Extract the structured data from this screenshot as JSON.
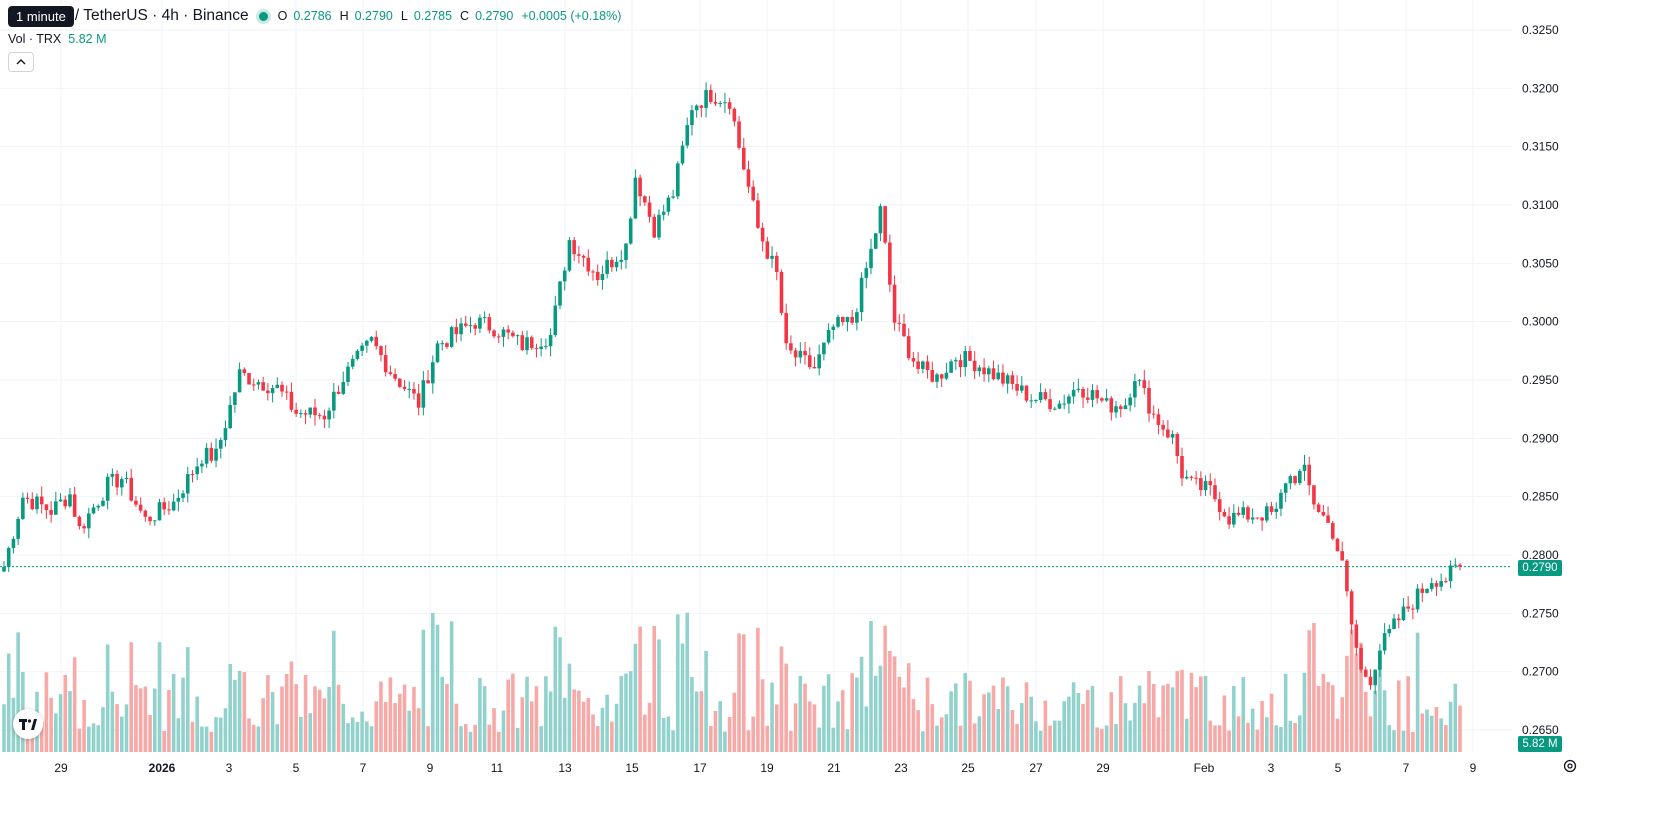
{
  "legend": {
    "tooltip": "1 minute",
    "symbol": "/ TetherUS · 4h · Binance",
    "open_label": "O",
    "open": "0.2786",
    "high_label": "H",
    "high": "0.2790",
    "low_label": "L",
    "low": "0.2785",
    "close_label": "C",
    "close": "0.2790",
    "change": "+0.0005 (+0.18%)"
  },
  "volume_legend": {
    "label": "Vol · TRX",
    "value": "5.82 M"
  },
  "collapse_icon": "chevron-up-icon",
  "current_price_tag": "0.2790",
  "volume_tag": "5.82 M",
  "colors": {
    "up": "#089981",
    "down": "#F23645",
    "up_vol": "#92D2CC",
    "down_vol": "#F7A9A7",
    "grid": "#F0F3FA",
    "price_line": "#089981"
  },
  "chart_data": {
    "type": "candlestick",
    "y_axis": {
      "ticks": [
        "0.3250",
        "0.3200",
        "0.3150",
        "0.3100",
        "0.3050",
        "0.3000",
        "0.2950",
        "0.2900",
        "0.2850",
        "0.2800",
        "0.2750",
        "0.2700",
        "0.2650"
      ],
      "range": [
        0.2635,
        0.3255
      ]
    },
    "x_axis": {
      "ticks": [
        "29",
        "2026",
        "3",
        "5",
        "7",
        "9",
        "11",
        "13",
        "15",
        "17",
        "19",
        "21",
        "23",
        "25",
        "27",
        "29",
        "Feb",
        "3",
        "5",
        "7",
        "9"
      ]
    },
    "current_price": 0.279,
    "anchors": [
      [
        0,
        0.279
      ],
      [
        4,
        0.285
      ],
      [
        10,
        0.2838
      ],
      [
        14,
        0.2852
      ],
      [
        16,
        0.2822
      ],
      [
        22,
        0.286
      ],
      [
        25,
        0.2866
      ],
      [
        30,
        0.283
      ],
      [
        36,
        0.2845
      ],
      [
        42,
        0.2885
      ],
      [
        45,
        0.2885
      ],
      [
        50,
        0.2955
      ],
      [
        58,
        0.2943
      ],
      [
        62,
        0.2922
      ],
      [
        68,
        0.292
      ],
      [
        72,
        0.2952
      ],
      [
        78,
        0.2983
      ],
      [
        82,
        0.2958
      ],
      [
        88,
        0.293
      ],
      [
        92,
        0.298
      ],
      [
        100,
        0.3
      ],
      [
        104,
        0.2995
      ],
      [
        110,
        0.298
      ],
      [
        116,
        0.2988
      ],
      [
        120,
        0.307
      ],
      [
        126,
        0.304
      ],
      [
        132,
        0.3065
      ],
      [
        134,
        0.3125
      ],
      [
        138,
        0.308
      ],
      [
        142,
        0.311
      ],
      [
        146,
        0.3185
      ],
      [
        150,
        0.3195
      ],
      [
        154,
        0.319
      ],
      [
        156,
        0.315
      ],
      [
        160,
        0.308
      ],
      [
        164,
        0.304
      ],
      [
        166,
        0.2975
      ],
      [
        172,
        0.296
      ],
      [
        176,
        0.2995
      ],
      [
        180,
        0.3
      ],
      [
        184,
        0.306
      ],
      [
        186,
        0.3095
      ],
      [
        189,
        0.3
      ],
      [
        194,
        0.296
      ],
      [
        198,
        0.2952
      ],
      [
        202,
        0.297
      ],
      [
        206,
        0.2965
      ],
      [
        212,
        0.295
      ],
      [
        218,
        0.2935
      ],
      [
        224,
        0.293
      ],
      [
        228,
        0.2945
      ],
      [
        232,
        0.2935
      ],
      [
        234,
        0.2928
      ],
      [
        238,
        0.293
      ],
      [
        240,
        0.2955
      ],
      [
        244,
        0.292
      ],
      [
        248,
        0.29
      ],
      [
        250,
        0.287
      ],
      [
        252,
        0.286
      ],
      [
        256,
        0.2855
      ],
      [
        260,
        0.2832
      ],
      [
        266,
        0.2835
      ],
      [
        270,
        0.2835
      ],
      [
        272,
        0.2865
      ],
      [
        276,
        0.287
      ],
      [
        278,
        0.2846
      ],
      [
        282,
        0.282
      ],
      [
        284,
        0.279
      ],
      [
        286,
        0.274
      ],
      [
        288,
        0.27
      ],
      [
        290,
        0.2695
      ],
      [
        292,
        0.272
      ],
      [
        296,
        0.2745
      ],
      [
        300,
        0.2765
      ],
      [
        303,
        0.278
      ],
      [
        306,
        0.278
      ],
      [
        309,
        0.279
      ]
    ],
    "candle_count": 310,
    "volume_max_label": "5.82 M",
    "last_volume": 5.82
  }
}
